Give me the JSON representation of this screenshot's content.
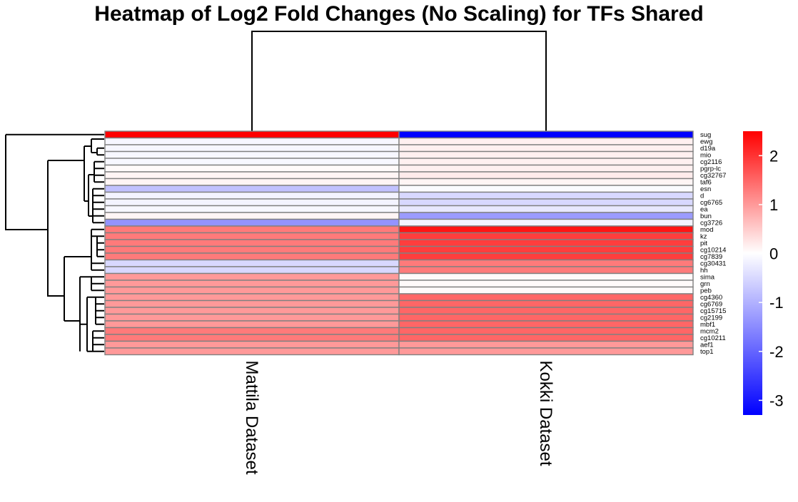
{
  "chart_data": {
    "type": "heatmap",
    "title": "Heatmap of Log2 Fold Changes (No Scaling) for TFs Shared",
    "columns": [
      "Mattila Dataset",
      "Kokki Dataset"
    ],
    "rows": [
      "sug",
      "ewg",
      "d19a",
      "mio",
      "cg2116",
      "pgrp-lc",
      "cg32767",
      "taf6",
      "esn",
      "d",
      "cg6765",
      "ea",
      "bun",
      "cg3726",
      "mod",
      "kz",
      "pit",
      "cg10214",
      "cg7839",
      "cg30431",
      "hh",
      "sima",
      "grn",
      "peb",
      "cg4360",
      "cg6769",
      "cg15715",
      "cg2199",
      "mbf1",
      "mcm2",
      "cg10211",
      "aef1",
      "top1"
    ],
    "values": [
      [
        2.5,
        -3.3
      ],
      [
        -0.1,
        0.15
      ],
      [
        -0.1,
        0.15
      ],
      [
        -0.1,
        0.15
      ],
      [
        -0.1,
        0.15
      ],
      [
        0.05,
        0.15
      ],
      [
        0.1,
        0.2
      ],
      [
        0.1,
        0.1
      ],
      [
        -0.8,
        -0.05
      ],
      [
        -0.15,
        -0.5
      ],
      [
        -0.15,
        -0.5
      ],
      [
        -0.1,
        -0.3
      ],
      [
        0.1,
        -1.3
      ],
      [
        -1.4,
        -0.15
      ],
      [
        1.3,
        2.3
      ],
      [
        1.3,
        1.9
      ],
      [
        1.3,
        1.9
      ],
      [
        1.3,
        1.9
      ],
      [
        1.3,
        1.9
      ],
      [
        -0.5,
        1.3
      ],
      [
        -0.5,
        1.3
      ],
      [
        1.0,
        0.05
      ],
      [
        1.0,
        0.05
      ],
      [
        1.0,
        0.05
      ],
      [
        1.0,
        1.5
      ],
      [
        1.0,
        1.5
      ],
      [
        1.0,
        1.5
      ],
      [
        1.0,
        1.5
      ],
      [
        1.0,
        1.5
      ],
      [
        1.3,
        1.5
      ],
      [
        1.3,
        1.5
      ],
      [
        1.0,
        1.0
      ],
      [
        1.0,
        1.0
      ]
    ],
    "colorbar": {
      "min": -3.3,
      "max": 2.5,
      "colors": [
        "#0000ff",
        "#ffffff",
        "#ff0000"
      ],
      "ticks": [
        2,
        1,
        0,
        -1,
        -2,
        -3
      ],
      "tick_labels": [
        "2",
        "1",
        "0",
        "-1",
        "-2",
        "-3"
      ]
    },
    "row_dendrogram": "shown",
    "col_dendrogram": "shown"
  }
}
